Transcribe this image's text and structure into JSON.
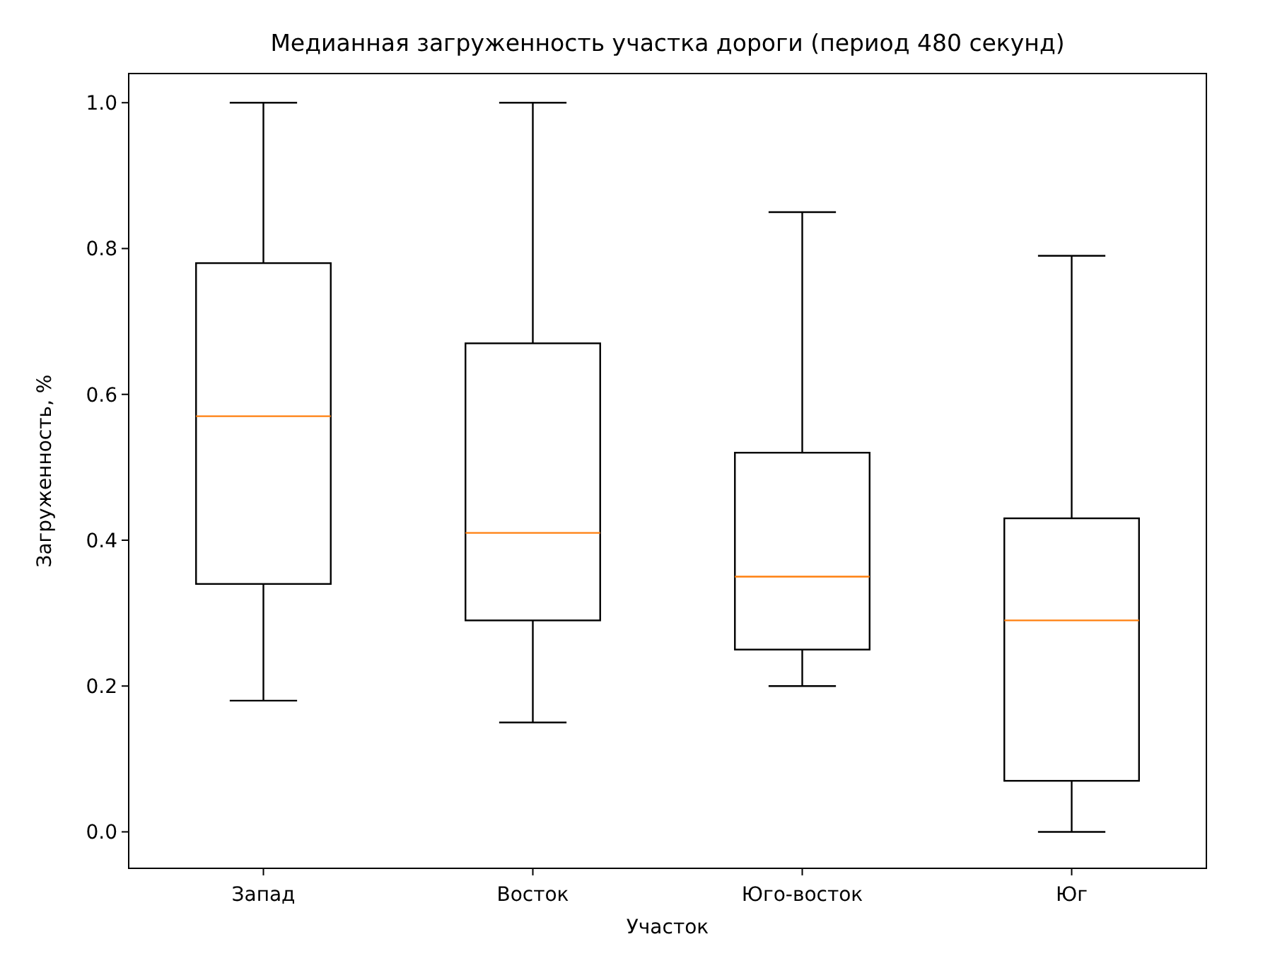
{
  "chart_data": {
    "type": "box",
    "title": "Медианная загруженность участка дороги (период 480 секунд)",
    "xlabel": "Участок",
    "ylabel": "Загруженность, %",
    "categories": [
      "Запад",
      "Восток",
      "Юго-восток",
      "Юг"
    ],
    "boxes": [
      {
        "low": 0.18,
        "q1": 0.34,
        "median": 0.57,
        "q3": 0.78,
        "high": 1.0
      },
      {
        "low": 0.15,
        "q1": 0.29,
        "median": 0.41,
        "q3": 0.67,
        "high": 1.0
      },
      {
        "low": 0.2,
        "q1": 0.25,
        "median": 0.35,
        "q3": 0.52,
        "high": 0.85
      },
      {
        "low": 0.0,
        "q1": 0.07,
        "median": 0.29,
        "q3": 0.43,
        "high": 0.79
      }
    ],
    "color": "#000000",
    "ylim": [
      -0.05,
      1.04
    ],
    "yticks": [
      {
        "value": 0,
        "label": "0.0"
      },
      {
        "value": 0.2,
        "label": "0.2"
      },
      {
        "value": 0.4,
        "label": "0.4"
      },
      {
        "value": 0.6,
        "label": "0.6"
      },
      {
        "value": 0.8,
        "label": "0.8"
      },
      {
        "value": 1,
        "label": "1.0"
      }
    ],
    "grid": false
  }
}
